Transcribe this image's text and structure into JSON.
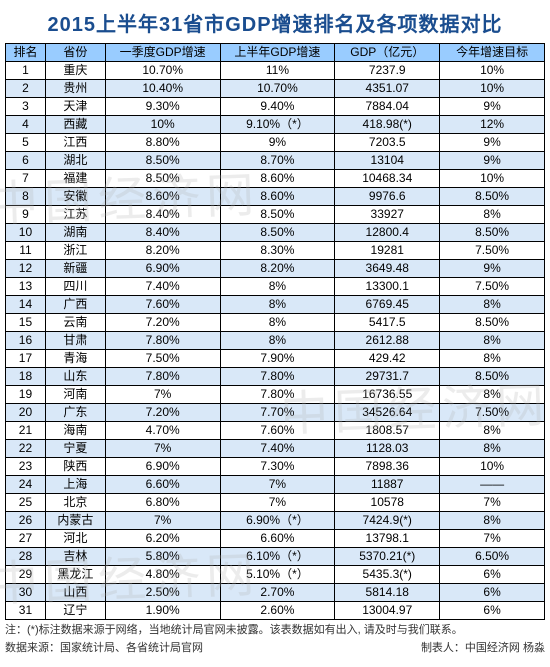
{
  "title": "2015上半年31省市GDP增速排名及各项数据对比",
  "columns": [
    "排名",
    "省份",
    "一季度GDP增速",
    "上半年GDP增速",
    "GDP（亿元）",
    "今年增速目标"
  ],
  "rows": [
    [
      "1",
      "重庆",
      "10.70%",
      "11%",
      "7237.9",
      "10%"
    ],
    [
      "2",
      "贵州",
      "10.40%",
      "10.70%",
      "4351.07",
      "10%"
    ],
    [
      "3",
      "天津",
      "9.30%",
      "9.40%",
      "7884.04",
      "9%"
    ],
    [
      "4",
      "西藏",
      "10%",
      "9.10%（*）",
      "418.98(*)",
      "12%"
    ],
    [
      "5",
      "江西",
      "8.80%",
      "9%",
      "7203.5",
      "9%"
    ],
    [
      "6",
      "湖北",
      "8.50%",
      "8.70%",
      "13104",
      "9%"
    ],
    [
      "7",
      "福建",
      "8.50%",
      "8.60%",
      "10468.34",
      "10%"
    ],
    [
      "8",
      "安徽",
      "8.60%",
      "8.60%",
      "9976.6",
      "8.50%"
    ],
    [
      "9",
      "江苏",
      "8.40%",
      "8.50%",
      "33927",
      "8%"
    ],
    [
      "10",
      "湖南",
      "8.40%",
      "8.50%",
      "12800.4",
      "8.50%"
    ],
    [
      "11",
      "浙江",
      "8.20%",
      "8.30%",
      "19281",
      "7.50%"
    ],
    [
      "12",
      "新疆",
      "6.90%",
      "8.20%",
      "3649.48",
      "9%"
    ],
    [
      "13",
      "四川",
      "7.40%",
      "8%",
      "13300.1",
      "7.50%"
    ],
    [
      "14",
      "广西",
      "7.60%",
      "8%",
      "6769.45",
      "8%"
    ],
    [
      "15",
      "云南",
      "7.20%",
      "8%",
      "5417.5",
      "8.50%"
    ],
    [
      "16",
      "甘肃",
      "7.80%",
      "8%",
      "2612.88",
      "8%"
    ],
    [
      "17",
      "青海",
      "7.50%",
      "7.90%",
      "429.42",
      "8%"
    ],
    [
      "18",
      "山东",
      "7.80%",
      "7.80%",
      "29731.7",
      "8.50%"
    ],
    [
      "19",
      "河南",
      "7%",
      "7.80%",
      "16736.55",
      "8%"
    ],
    [
      "20",
      "广东",
      "7.20%",
      "7.70%",
      "34526.64",
      "7.50%"
    ],
    [
      "21",
      "海南",
      "4.70%",
      "7.60%",
      "1808.57",
      "8%"
    ],
    [
      "22",
      "宁夏",
      "7%",
      "7.40%",
      "1128.03",
      "8%"
    ],
    [
      "23",
      "陕西",
      "6.90%",
      "7.30%",
      "7898.36",
      "10%"
    ],
    [
      "24",
      "上海",
      "6.60%",
      "7%",
      "11887",
      "——"
    ],
    [
      "25",
      "北京",
      "6.80%",
      "7%",
      "10578",
      "7%"
    ],
    [
      "26",
      "内蒙古",
      "7%",
      "6.90%（*）",
      "7424.9(*)",
      "8%"
    ],
    [
      "27",
      "河北",
      "6.20%",
      "6.60%",
      "13798.1",
      "7%"
    ],
    [
      "28",
      "吉林",
      "5.80%",
      "6.10%（*）",
      "5370.21(*)",
      "6.50%"
    ],
    [
      "29",
      "黑龙江",
      "4.80%",
      "5.10%（*）",
      "5435.3(*)",
      "6%"
    ],
    [
      "30",
      "山西",
      "2.50%",
      "2.70%",
      "5814.18",
      "6%"
    ],
    [
      "31",
      "辽宁",
      "1.90%",
      "2.60%",
      "13004.97",
      "6%"
    ]
  ],
  "note": "注：(*)标注数据来源于网络，当地统计局官网未披露。该表数据如有出入, 请及时与我们联系。",
  "source_left": "数据来源：国家统计局、各省统计局官网",
  "source_right": "制表人：中国经济网 杨淼",
  "watermark": "中国经济网"
}
